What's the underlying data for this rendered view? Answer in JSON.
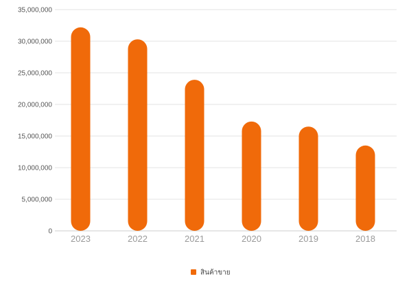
{
  "chart_data": {
    "type": "bar",
    "title": "",
    "xlabel": "",
    "ylabel": "",
    "categories": [
      "2023",
      "2022",
      "2021",
      "2020",
      "2019",
      "2018"
    ],
    "series": [
      {
        "name": "สินค้าขาย",
        "values": [
          32200000,
          30300000,
          23900000,
          17300000,
          16500000,
          13500000
        ],
        "color": "#f06a0a"
      }
    ],
    "yticks": [
      {
        "value": 0,
        "label": "0"
      },
      {
        "value": 5000000,
        "label": "5,000,000"
      },
      {
        "value": 10000000,
        "label": "10,000,000"
      },
      {
        "value": 15000000,
        "label": "15,000,000"
      },
      {
        "value": 20000000,
        "label": "20,000,000"
      },
      {
        "value": 25000000,
        "label": "25,000,000"
      },
      {
        "value": 30000000,
        "label": "30,000,000"
      },
      {
        "value": 35000000,
        "label": "35,000,000"
      }
    ],
    "ylim": [
      0,
      35000000
    ],
    "grid": true,
    "legend": "bottom-center",
    "colors": {
      "bar": "#f06a0a",
      "grid": "#e3e3e3",
      "axis": "#cccccc"
    }
  }
}
